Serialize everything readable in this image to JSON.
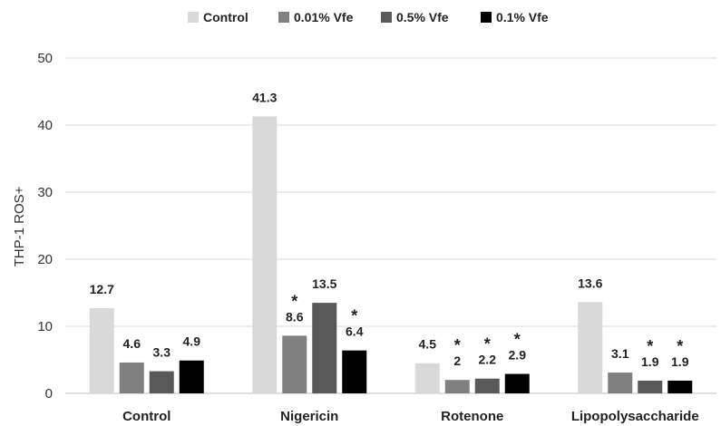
{
  "chart_data": {
    "type": "bar",
    "categories": [
      "Control",
      "Nigericin",
      "Rotenone",
      "Lipopolysaccharide"
    ],
    "series": [
      {
        "name": "Control",
        "color": "#d9d9d9",
        "values": [
          12.7,
          41.3,
          4.5,
          13.6
        ],
        "labels": [
          "12.7",
          "41.3",
          "4.5",
          "13.6"
        ],
        "significant": [
          false,
          false,
          false,
          false
        ]
      },
      {
        "name": "0.01% Vfe",
        "color": "#808080",
        "values": [
          4.6,
          8.6,
          2,
          3.1
        ],
        "labels": [
          "4.6",
          "8.6",
          "2",
          "3.1"
        ],
        "significant": [
          false,
          true,
          true,
          false
        ]
      },
      {
        "name": "0.5% Vfe",
        "color": "#595959",
        "values": [
          3.3,
          13.5,
          2.2,
          1.9
        ],
        "labels": [
          "3.3",
          "13.5",
          "2.2",
          "1.9"
        ],
        "significant": [
          false,
          false,
          true,
          true
        ]
      },
      {
        "name": "0.1% Vfe",
        "color": "#000000",
        "values": [
          4.9,
          6.4,
          2.9,
          1.9
        ],
        "labels": [
          "4.9",
          "6.4",
          "2.9",
          "1.9"
        ],
        "significant": [
          false,
          true,
          true,
          true
        ]
      }
    ],
    "significance_marker": "*",
    "ylabel": "THP-1 ROS+",
    "xlabel": "",
    "title": "",
    "ylim": [
      0,
      50
    ],
    "yticks": [
      0,
      10,
      20,
      30,
      40,
      50
    ],
    "grid": true,
    "legend_position": "top"
  }
}
